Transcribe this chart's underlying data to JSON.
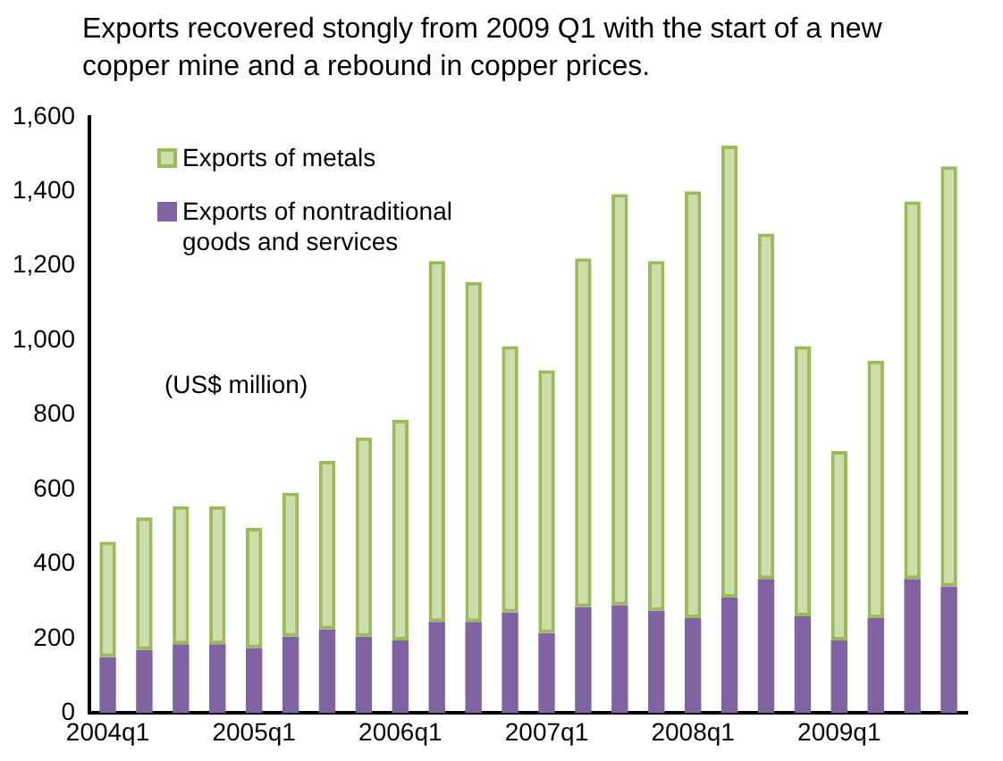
{
  "chart_data": {
    "type": "bar",
    "stacked": true,
    "title": "Exports recovered stongly  from 2009 Q1 with the start of a new copper mine and a rebound in copper prices.",
    "ylabel": "(US$ million)",
    "categories": [
      "2004q1",
      null,
      null,
      null,
      "2005q1",
      null,
      null,
      null,
      "2006q1",
      null,
      null,
      null,
      "2007q1",
      null,
      null,
      null,
      "2008q1",
      null,
      null,
      null,
      "2009q1",
      null,
      null,
      null
    ],
    "series": [
      {
        "name": "Exports of nontraditional goods and services",
        "color": "#8064a2",
        "values": [
          150,
          170,
          185,
          185,
          175,
          205,
          225,
          205,
          195,
          245,
          245,
          270,
          215,
          285,
          290,
          275,
          255,
          310,
          360,
          260,
          195,
          255,
          360,
          340
        ]
      },
      {
        "name": "Exports of metals",
        "color": "#9bbb59",
        "values": [
          310,
          355,
          370,
          370,
          322,
          387,
          452,
          535,
          592,
          968,
          912,
          715,
          705,
          935,
          1103,
          938,
          1145,
          1213,
          927,
          725,
          508,
          691,
          1013,
          1127
        ]
      }
    ],
    "ylim": [
      0,
      1600
    ],
    "yticks": [
      0,
      200,
      400,
      600,
      800,
      {
        "value": 1000,
        "label": "1,000"
      },
      {
        "value": 1200,
        "label": "1,200"
      },
      {
        "value": 1400,
        "label": "1,400"
      },
      {
        "value": 1600,
        "label": "1,600"
      }
    ],
    "grid": false,
    "legend": "top left"
  }
}
